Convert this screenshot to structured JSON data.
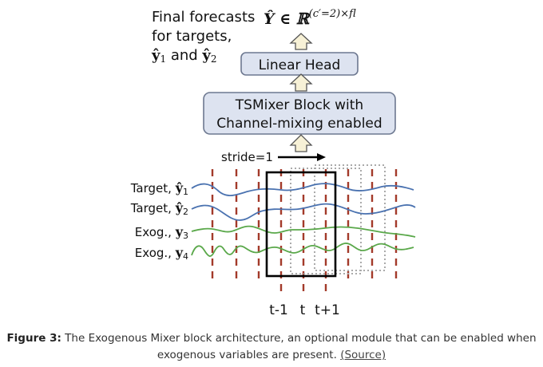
{
  "diagram": {
    "forecast_label": [
      "Final forecasts",
      "for targets,"
    ],
    "forecast_targets": {
      "y1": "ŷ",
      "sub1": "1",
      "and": " and ",
      "y2": "ŷ",
      "sub2": "2"
    },
    "output_formula": {
      "prefix": "Ŷ ∈ ℝ",
      "exponent": "(c′=2)×fl"
    },
    "linear_head_label": "Linear Head",
    "tsmixer_label": [
      "TSMixer Block with",
      "Channel-mixing enabled"
    ],
    "stride_label": "stride=1",
    "series": [
      {
        "prefix": "Target, ",
        "var": "ŷ",
        "sub": "1",
        "color": "#4a72b0"
      },
      {
        "prefix": "Target, ",
        "var": "ŷ",
        "sub": "2",
        "color": "#4a72b0"
      },
      {
        "prefix": "Exog., ",
        "var": "y",
        "sub": "3",
        "color": "#5aa84a"
      },
      {
        "prefix": "Exog., ",
        "var": "y",
        "sub": "4",
        "color": "#5aa84a"
      }
    ],
    "time_labels": [
      "t-1",
      "t",
      "t+1"
    ],
    "colors": {
      "box_fill": "#dde3f0",
      "box_stroke": "#6d7890",
      "arrow_fill": "#f7f1d6",
      "arrow_stroke": "#555555",
      "dash": "#a33a2a",
      "window": "#000000",
      "window_dotted": "#aaaaaa"
    }
  },
  "caption": {
    "label": "Figure 3:",
    "text": " The Exogenous Mixer block architecture, an optional module that can be enabled when exogenous variables are present. ",
    "link": "(Source)"
  }
}
